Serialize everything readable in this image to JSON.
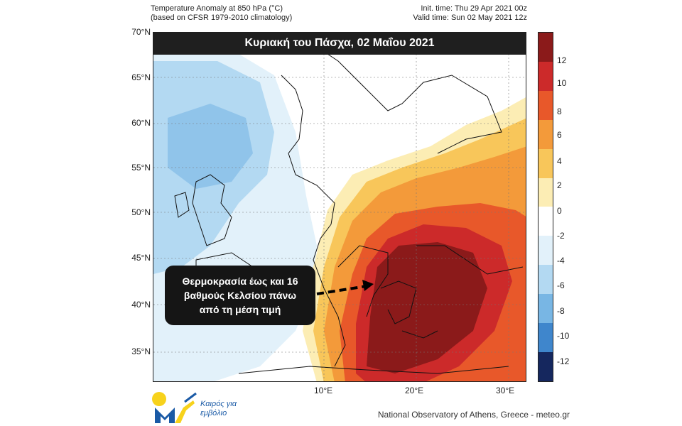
{
  "header": {
    "title_line1": "Temperature Anomaly at 850 hPa (°C)",
    "title_line2": "(based on CFSR 1979-2010 climatology)",
    "init_time": "Init. time: Thu 29 Apr 2021 00z",
    "valid_time": "Valid time: Sun 02 May 2021 12z"
  },
  "banner": "Κυριακή του Πάσχα, 02 Μαΐου 2021",
  "callout": {
    "line1": "Θερμοκρασία έως και 16",
    "line2": "βαθμούς Κελσίου πάνω",
    "line3": "από τη μέση τιμή"
  },
  "lat_labels": [
    "70°N",
    "65°N",
    "60°N",
    "55°N",
    "50°N",
    "45°N",
    "40°N",
    "35°N"
  ],
  "lon_labels": [
    "10°E",
    "20°E",
    "30°E"
  ],
  "colorbar": {
    "labels": [
      "12",
      "10",
      "8",
      "6",
      "4",
      "2",
      "0",
      "-2",
      "-4",
      "-6",
      "-8",
      "-10",
      "-12"
    ],
    "colors": [
      "#8b1a1a",
      "#cc2a2a",
      "#e8582a",
      "#f39a3a",
      "#f8c65a",
      "#fcedb4",
      "#ffffff",
      "#e2f1fa",
      "#b3d9f2",
      "#78b6e4",
      "#3f86cc",
      "#2255a6",
      "#15275e"
    ]
  },
  "logo": {
    "text_line1": "Καιρός για",
    "text_line2": "εμβόλιο"
  },
  "footer": "National Observatory of Athens, Greece - meteo.gr"
}
